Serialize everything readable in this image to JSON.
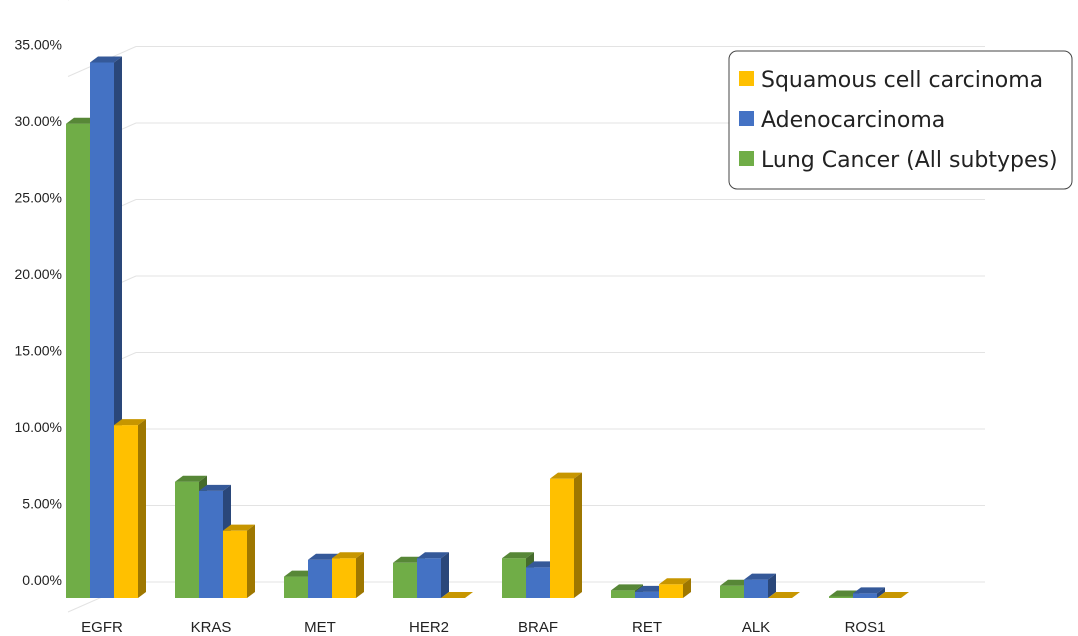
{
  "chart_data": {
    "type": "bar",
    "categories": [
      "EGFR",
      "KRAS",
      "MET",
      "HER2",
      "BRAF",
      "RET",
      "ALK",
      "ROS1"
    ],
    "series": [
      {
        "name": "Lung Cancer (All subtypes)",
        "color": "#70AD47",
        "values": [
          31.0,
          7.6,
          1.4,
          2.3,
          2.6,
          0.5,
          0.8,
          0.1
        ]
      },
      {
        "name": "Adenocarcinoma",
        "color": "#4472C4",
        "values": [
          35.0,
          7.0,
          2.5,
          2.6,
          2.0,
          0.4,
          1.2,
          0.3
        ]
      },
      {
        "name": "Squamous cell carcinoma",
        "color": "#FFC000",
        "values": [
          11.3,
          4.4,
          2.6,
          0.0,
          7.8,
          0.9,
          0.0,
          0.0
        ]
      }
    ],
    "yTicks": [
      "0.00%",
      "5.00%",
      "10.00%",
      "15.00%",
      "20.00%",
      "25.00%",
      "30.00%",
      "35.00%"
    ],
    "ylim": [
      0,
      35
    ],
    "grid": true,
    "legend_position": "top-right",
    "legend_order": [
      "Squamous cell carcinoma",
      "Adenocarcinoma",
      "Lung Cancer (All subtypes)"
    ]
  }
}
